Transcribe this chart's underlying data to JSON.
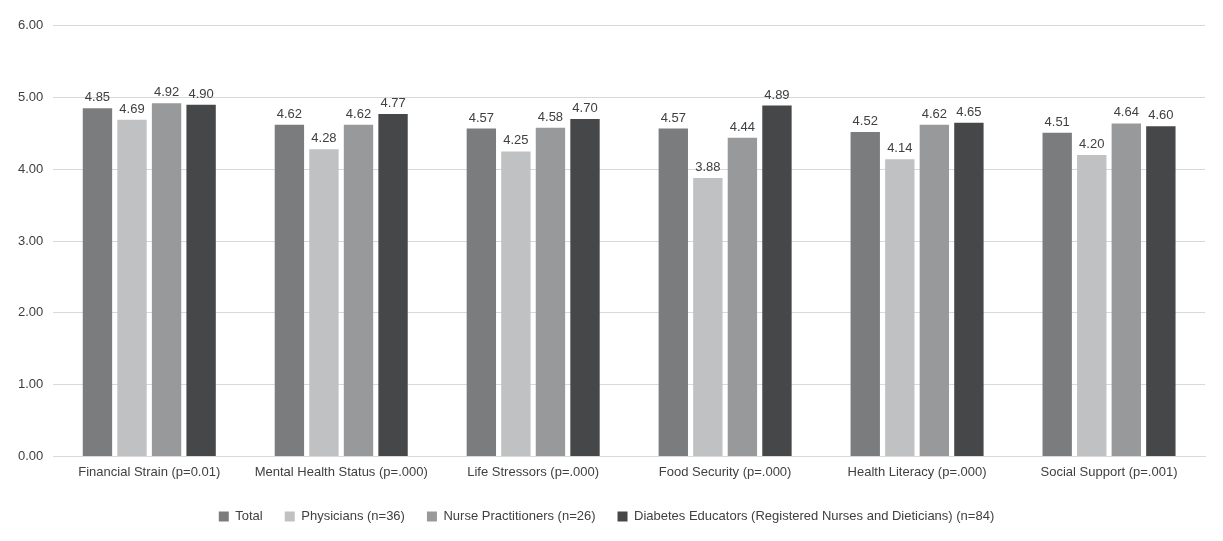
{
  "chart_data": {
    "type": "bar",
    "categories": [
      "Financial Strain (p=0.01)",
      "Mental Health Status (p=.000)",
      "Life Stressors (p=.000)",
      "Food Security (p=.000)",
      "Health Literacy (p=.000)",
      "Social Support (p=.001)"
    ],
    "series": [
      {
        "name": "Total",
        "color": "#7b7c7e",
        "values": [
          4.85,
          4.62,
          4.57,
          4.57,
          4.52,
          4.51
        ],
        "value_labels": [
          "4.85",
          "4.62",
          "4.57",
          "4.57",
          "4.52",
          "4.51"
        ]
      },
      {
        "name": "Physicians (n=36)",
        "color": "#c0c1c3",
        "values": [
          4.69,
          4.28,
          4.25,
          3.88,
          4.14,
          4.2
        ],
        "value_labels": [
          "4.69",
          "4.28",
          "4.25",
          "3.88",
          "4.14",
          "4.20"
        ]
      },
      {
        "name": "Nurse Practitioners (n=26)",
        "color": "#98999b",
        "values": [
          4.92,
          4.62,
          4.58,
          4.44,
          4.62,
          4.64
        ],
        "value_labels": [
          "4.92",
          "4.62",
          "4.58",
          "4.44",
          "4.62",
          "4.64"
        ]
      },
      {
        "name": "Diabetes Educators (Registered Nurses and Dieticians) (n=84)",
        "color": "#464749",
        "values": [
          4.9,
          4.77,
          4.7,
          4.89,
          4.65,
          4.6
        ],
        "value_labels": [
          "4.90",
          "4.77",
          "4.70",
          "4.89",
          "4.65",
          "4.60"
        ]
      }
    ],
    "ylim": [
      0,
      6
    ],
    "yticks": [
      {
        "value": 0,
        "label": "0.00"
      },
      {
        "value": 1,
        "label": "1.00"
      },
      {
        "value": 2,
        "label": "2.00"
      },
      {
        "value": 3,
        "label": "3.00"
      },
      {
        "value": 4,
        "label": "4.00"
      },
      {
        "value": 5,
        "label": "5.00"
      },
      {
        "value": 6,
        "label": "6.00"
      }
    ],
    "grid": "y",
    "legend": "bottom"
  }
}
